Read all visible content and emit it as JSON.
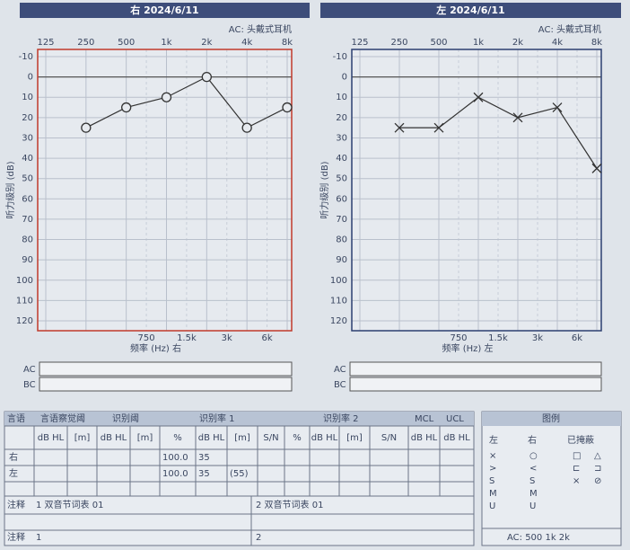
{
  "chart_data": [
    {
      "type": "line",
      "title": "右 2024/6/11",
      "note": "AC: 头戴式耳机",
      "categories": [
        "125",
        "250",
        "500",
        "1k",
        "2k",
        "4k",
        "8k"
      ],
      "mid_categories": [
        "750",
        "1.5k",
        "3k",
        "6k"
      ],
      "xlabel": "频率 (Hz) 右",
      "ylabel": "听力级别 (dB)",
      "ylim": [
        -10,
        120
      ],
      "yticks": [
        -10,
        0,
        10,
        20,
        30,
        40,
        50,
        60,
        70,
        80,
        90,
        100,
        110,
        120
      ],
      "y_inverted": true,
      "grid": true,
      "frame_color": "#c0392b",
      "series": [
        {
          "color": "#333333",
          "marker": "circle",
          "values": [
            null,
            25,
            15,
            10,
            0,
            25,
            15
          ]
        }
      ]
    },
    {
      "type": "line",
      "title": "左 2024/6/11",
      "note": "AC: 头戴式耳机",
      "categories": [
        "125",
        "250",
        "500",
        "1k",
        "2k",
        "4k",
        "8k"
      ],
      "mid_categories": [
        "750",
        "1.5k",
        "3k",
        "6k"
      ],
      "xlabel": "频率 (Hz) 左",
      "ylabel": "听力级别 (dB)",
      "ylim": [
        -10,
        120
      ],
      "yticks": [
        -10,
        0,
        10,
        20,
        30,
        40,
        50,
        60,
        70,
        80,
        90,
        100,
        110,
        120
      ],
      "y_inverted": true,
      "grid": true,
      "frame_color": "#2c3e70",
      "series": [
        {
          "color": "#333333",
          "marker": "cross",
          "values": [
            null,
            25,
            25,
            10,
            20,
            15,
            45
          ]
        }
      ]
    }
  ],
  "strips": [
    "AC",
    "BC"
  ],
  "speech": {
    "headers": [
      "言语",
      "言语察觉阈",
      "识别阈",
      "识别率 1",
      "识别率 2",
      "MCL",
      "UCL"
    ],
    "subheaders": [
      "dB HL",
      "[m]",
      "dB HL",
      "[m]",
      "%",
      "dB HL",
      "[m]",
      "S/N",
      "%",
      "dB HL",
      "[m]",
      "S/N",
      "dB HL",
      "dB HL"
    ],
    "rows": [
      {
        "label": "右",
        "cells": [
          null,
          null,
          null,
          null,
          "100.0",
          "35",
          null,
          null,
          null,
          null,
          null,
          null,
          null,
          null
        ]
      },
      {
        "label": "左",
        "cells": [
          null,
          null,
          null,
          null,
          "100.0",
          "35",
          "(55)",
          null,
          null,
          null,
          null,
          null,
          null,
          null
        ]
      }
    ],
    "notes_label": "注释",
    "notes": [
      "1 双音节词表 01",
      "2 双音节词表 01"
    ],
    "footer_label": "注释",
    "footer": [
      "1",
      "2"
    ]
  },
  "legend": {
    "title": "图例",
    "columns": [
      "左",
      "右",
      "已掩蔽"
    ],
    "left_symbols": [
      "×",
      ">",
      "S",
      "M",
      "U"
    ],
    "right_symbols": [
      "○",
      "<",
      "S",
      "M",
      "U"
    ],
    "masked_symbols": [
      "□",
      "△",
      "⊏",
      "⊐",
      "×",
      "⊘"
    ],
    "footer": "AC: 500 1k 2k"
  }
}
